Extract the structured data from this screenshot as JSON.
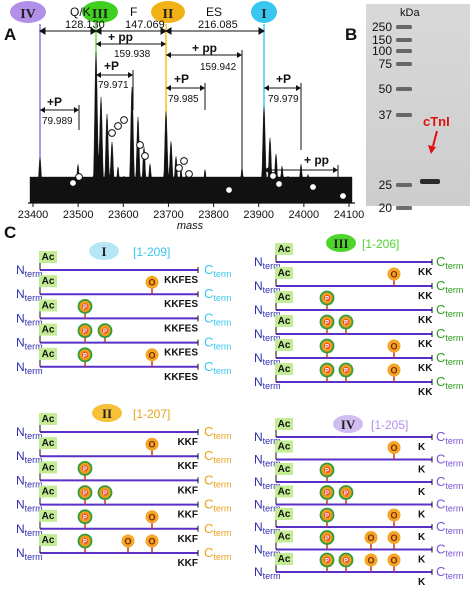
{
  "panel_labels": {
    "a": "A",
    "b": "B",
    "c": "C"
  },
  "panel_a": {
    "x_axis_title": "mass",
    "x_ticks": [
      "23400",
      "23500",
      "23600",
      "23700",
      "23800",
      "23900",
      "24000",
      "24100"
    ],
    "species_badges": [
      {
        "roman": "IV",
        "color": "#b28fe8"
      },
      {
        "roman": "III",
        "color": "#3fd11e"
      },
      {
        "roman": "II",
        "color": "#f2b215"
      },
      {
        "roman": "I",
        "color": "#39c6f0"
      }
    ],
    "top_labels": {
      "qk": "Q/K",
      "f": "F",
      "es": "ES"
    },
    "top_masses": {
      "qk": "128.130",
      "f": "147.069",
      "es": "216.085"
    },
    "plus_p": "+P",
    "plus_pp": "+ pp",
    "shift_values": {
      "p1": "79.989",
      "pp1": "159.938",
      "p2": "79.971",
      "p3": "79.985",
      "pp2": "159.942",
      "p4": "79.979"
    },
    "phospho_marker": "o",
    "species_line_colors": {
      "IV": "#7a55d6",
      "III": "#3fd11e",
      "II": "#f2c010",
      "I": "#39c6f0"
    }
  },
  "panel_b": {
    "unit": "kDa",
    "markers": [
      "250",
      "150",
      "100",
      "75",
      "50",
      "37",
      "25",
      "20"
    ],
    "band_label": "cTnI",
    "band_label_color": "#e01010"
  },
  "panel_c": {
    "n_main": "N",
    "n_sub": "term",
    "c_main": "C",
    "c_sub": "term",
    "ac_label": "Ac",
    "p_label": "P",
    "o_label": "O",
    "line_color": "#5a30c8",
    "groups": [
      {
        "roman": "I",
        "range": "[1-209]",
        "badge_color": "#b7e6f7",
        "range_color": "#39c6f0",
        "cterm_color": "#39c6f0",
        "ending": "KKFES",
        "rows": [
          [
            "Ac"
          ],
          [
            "Ac",
            "O2"
          ],
          [
            "Ac",
            "P1"
          ],
          [
            "Ac",
            "P1",
            "P2"
          ],
          [
            "Ac",
            "P1",
            "O2"
          ]
        ]
      },
      {
        "roman": "II",
        "range": "[1-207]",
        "badge_color": "#f7c137",
        "range_color": "#e8a218",
        "cterm_color": "#e8a218",
        "ending": "KKF",
        "rows": [
          [
            "Ac"
          ],
          [
            "Ac",
            "O2"
          ],
          [
            "Ac",
            "P1"
          ],
          [
            "Ac",
            "P1",
            "P2"
          ],
          [
            "Ac",
            "P1",
            "O2"
          ],
          [
            "Ac",
            "P1",
            "O2",
            "O3"
          ]
        ]
      },
      {
        "roman": "III",
        "range": "[1-206]",
        "badge_color": "#4ed52c",
        "range_color": "#4ed52c",
        "cterm_color": "#2aa11c",
        "ending": "KK",
        "rows": [
          [
            "Ac"
          ],
          [
            "Ac",
            "O2"
          ],
          [
            "Ac",
            "P1"
          ],
          [
            "Ac",
            "P1",
            "P2"
          ],
          [
            "Ac",
            "P1",
            "O2"
          ],
          [
            "Ac",
            "P1",
            "P2",
            "O2"
          ]
        ]
      },
      {
        "roman": "IV",
        "range": "[1-205]",
        "badge_color": "#d2bdf2",
        "range_color": "#b08fe8",
        "cterm_color": "#7a55d6",
        "ending": "K",
        "rows": [
          [
            "Ac"
          ],
          [
            "Ac",
            "O2"
          ],
          [
            "Ac",
            "P1"
          ],
          [
            "Ac",
            "P1",
            "P2"
          ],
          [
            "Ac",
            "P1",
            "O2"
          ],
          [
            "Ac",
            "P1",
            "O2",
            "O3"
          ],
          [
            "Ac",
            "P1",
            "P2",
            "O2",
            "O3"
          ]
        ]
      }
    ]
  }
}
